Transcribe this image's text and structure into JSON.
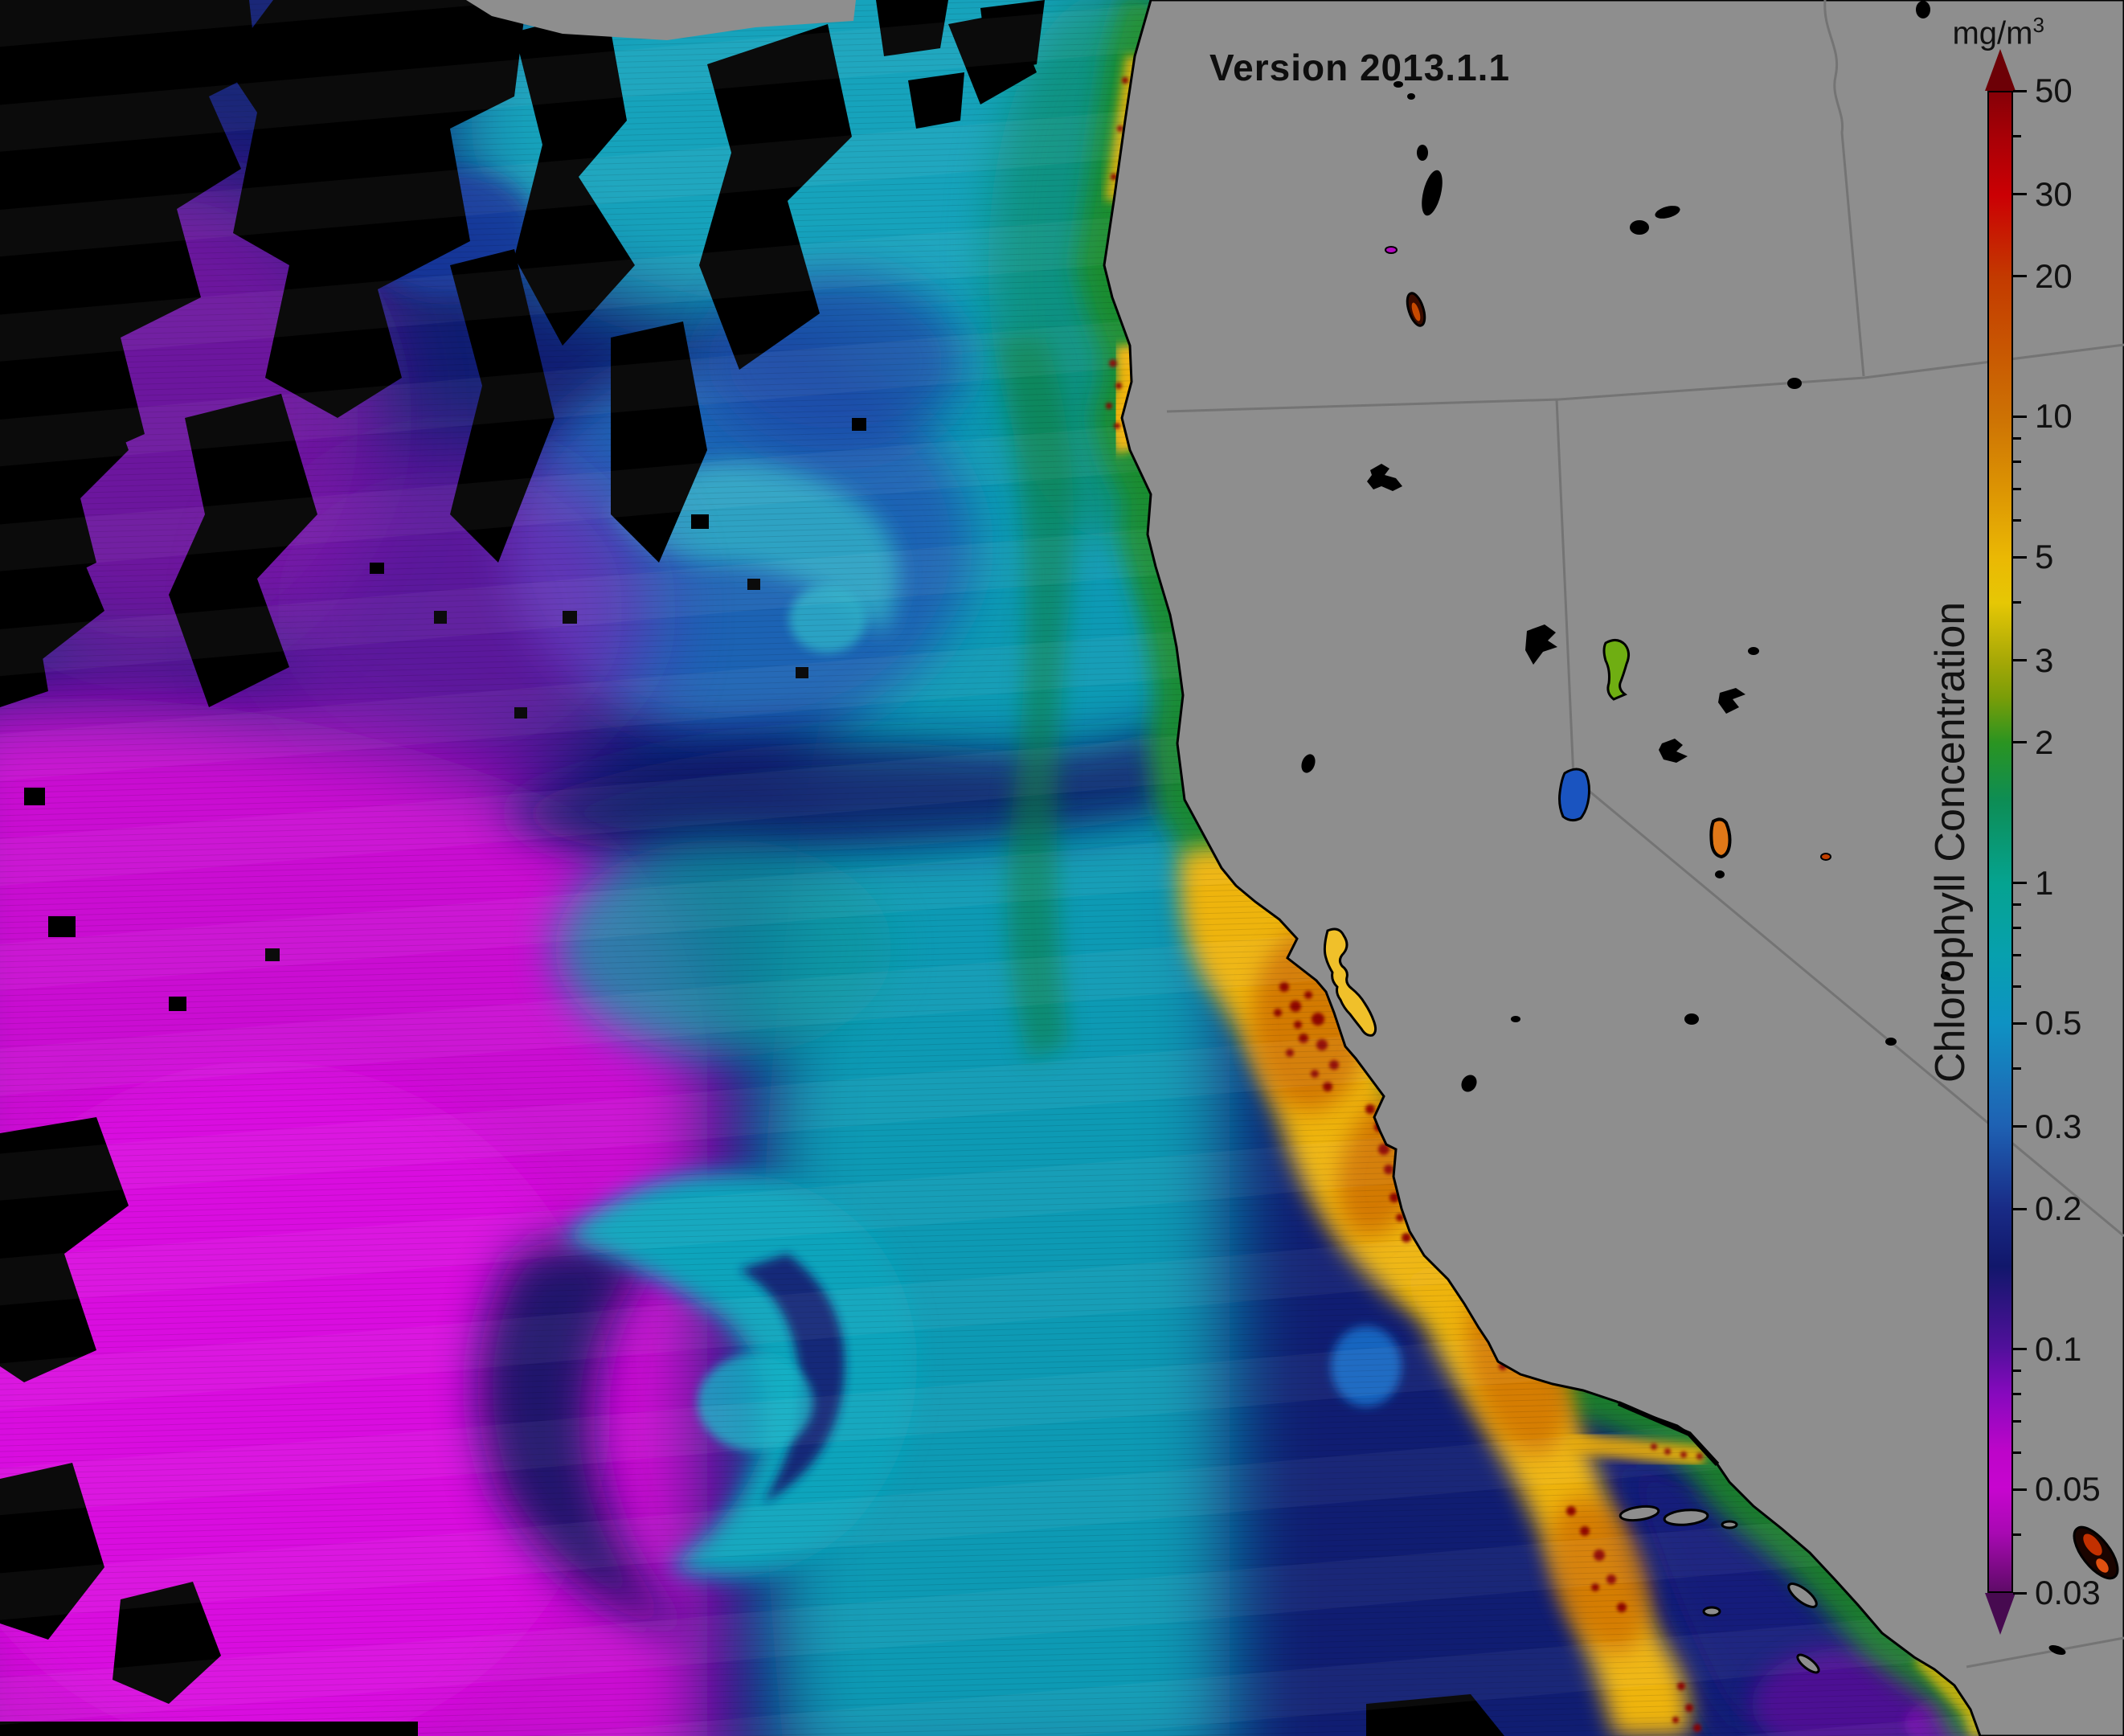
{
  "title": "Version 2013.1.1",
  "colorbar": {
    "unit_base": "mg/m",
    "unit_exponent": "3",
    "axis_label": "Chlorophyll Concentration",
    "scale": "logarithmic",
    "domain_max": 50,
    "domain_min": 0.03,
    "major_ticks": [
      {
        "value": 50,
        "label": "50"
      },
      {
        "value": 30,
        "label": "30"
      },
      {
        "value": 20,
        "label": "20"
      },
      {
        "value": 10,
        "label": "10"
      },
      {
        "value": 5,
        "label": "5"
      },
      {
        "value": 3,
        "label": "3"
      },
      {
        "value": 2,
        "label": "2"
      },
      {
        "value": 1,
        "label": "1"
      },
      {
        "value": 0.5,
        "label": "0.5"
      },
      {
        "value": 0.3,
        "label": "0.3"
      },
      {
        "value": 0.2,
        "label": "0.2"
      },
      {
        "value": 0.1,
        "label": "0.1"
      },
      {
        "value": 0.05,
        "label": "0.05"
      },
      {
        "value": 0.03,
        "label": "0.03"
      }
    ],
    "minor_ticks": [
      40,
      9,
      8,
      7,
      6,
      4,
      0.9,
      0.8,
      0.7,
      0.6,
      0.4,
      0.09,
      0.08,
      0.07,
      0.06,
      0.04
    ],
    "gradient": [
      {
        "value": 50,
        "color": "#860007"
      },
      {
        "value": 40,
        "color": "#a80006"
      },
      {
        "value": 30,
        "color": "#cb0004"
      },
      {
        "value": 20,
        "color": "#c33a00"
      },
      {
        "value": 10,
        "color": "#cd7204"
      },
      {
        "value": 7,
        "color": "#dc9403"
      },
      {
        "value": 5,
        "color": "#eab804"
      },
      {
        "value": 4,
        "color": "#e6c705"
      },
      {
        "value": 3,
        "color": "#a6a806"
      },
      {
        "value": 2.5,
        "color": "#7a9d08"
      },
      {
        "value": 2,
        "color": "#2a9421"
      },
      {
        "value": 1.5,
        "color": "#0d8d55"
      },
      {
        "value": 1,
        "color": "#05a390"
      },
      {
        "value": 0.7,
        "color": "#07a0ae"
      },
      {
        "value": 0.5,
        "color": "#0e92c3"
      },
      {
        "value": 0.35,
        "color": "#1c6fb8"
      },
      {
        "value": 0.3,
        "color": "#1e61b3"
      },
      {
        "value": 0.2,
        "color": "#192b86"
      },
      {
        "value": 0.15,
        "color": "#11176b"
      },
      {
        "value": 0.1,
        "color": "#51109b"
      },
      {
        "value": 0.08,
        "color": "#8609bd"
      },
      {
        "value": 0.06,
        "color": "#bd05c9"
      },
      {
        "value": 0.05,
        "color": "#c705cf"
      },
      {
        "value": 0.04,
        "color": "#a809b2"
      },
      {
        "value": 0.03,
        "color": "#5f0b68"
      }
    ],
    "arrow_top_color": "#6d0006",
    "arrow_bottom_color": "#470a50"
  },
  "map": {
    "land_color": "#8e8e8e",
    "state_border_color": "#747474",
    "cloud_mask_color": "#000000",
    "coastline_color": "#000000",
    "depicted_region": "U.S. West Coast (California / Oregon / Nevada) and adjacent Pacific Ocean",
    "borders": [
      "oregon-california",
      "oregon-idaho",
      "california-nevada",
      "us-mexico"
    ],
    "lakes": [
      {
        "name": "upper-klamath-lake",
        "color": "#000000"
      },
      {
        "name": "goose-lake",
        "color": "#c84a00"
      },
      {
        "name": "shasta-lake",
        "color": "#000000"
      },
      {
        "name": "clear-lake",
        "color": "#000000"
      },
      {
        "name": "honey-lake",
        "color": "#000000"
      },
      {
        "name": "pyramid-lake",
        "color": "#6fae12"
      },
      {
        "name": "lake-tahoe",
        "color": "#1a54c0"
      },
      {
        "name": "carson-sink",
        "color": "#000000"
      },
      {
        "name": "humboldt-sink",
        "color": "#000000"
      },
      {
        "name": "walker-lake",
        "color": "#e07818"
      },
      {
        "name": "mono-lake",
        "color": "#000000"
      },
      {
        "name": "salton-sea",
        "color": "#c23000"
      }
    ],
    "islands": [
      "channel-islands"
    ],
    "ocean_legend": [
      {
        "name": "cloud-no-data-mask",
        "color": "#000000"
      },
      {
        "name": "oligotrophic-gyre-water",
        "color": "#cb06d2"
      },
      {
        "name": "transition-water",
        "color": "#1b63b4"
      },
      {
        "name": "california-current-water",
        "color": "#0f9ab4"
      },
      {
        "name": "coastal-bloom",
        "color": "#eeb408"
      },
      {
        "name": "intense-bloom-patches",
        "color": "#8c0500"
      }
    ]
  }
}
